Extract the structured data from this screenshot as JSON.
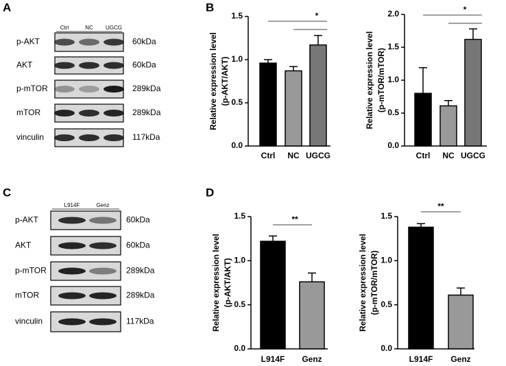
{
  "panel_labels": [
    "A",
    "B",
    "C",
    "D"
  ],
  "blot_a": {
    "lanes": [
      "Ctrl",
      "NC",
      "UGCG"
    ],
    "proteins": [
      "p-AKT",
      "AKT",
      "p-mTOR",
      "mTOR",
      "vinculin"
    ],
    "sizes": [
      "60kDa",
      "60kDa",
      "289kDa",
      "289kDa",
      "117kDa"
    ]
  },
  "blot_c": {
    "lanes": [
      "L914F",
      "Genz"
    ],
    "proteins": [
      "p-AKT",
      "AKT",
      "p-mTOR",
      "mTOR",
      "vinculin"
    ],
    "sizes": [
      "60kDa",
      "60kDa",
      "289kDa",
      "289kDa",
      "117kDa"
    ]
  },
  "chart_data": [
    {
      "type": "bar",
      "y_label": [
        "Relative expression level",
        "(p-AKT/AKT)"
      ],
      "categories": [
        "Ctrl",
        "NC",
        "UGCG"
      ],
      "values": [
        0.96,
        0.87,
        1.17
      ],
      "errors": [
        0.04,
        0.05,
        0.11
      ],
      "colors": [
        "#000000",
        "#999999",
        "#777777"
      ],
      "ylim": [
        0,
        1.5
      ],
      "yticks": [
        {
          "value": 0,
          "label": "0.0"
        },
        0.5,
        {
          "value": 1,
          "label": "1.0"
        },
        1.5
      ],
      "significance": {
        "label": "*",
        "pairs": [
          [
            "Ctrl",
            "UGCG"
          ],
          [
            "NC",
            "UGCG"
          ]
        ]
      }
    },
    {
      "type": "bar",
      "y_label": [
        "Relative expression level",
        "(p-mTOR/mTOR)"
      ],
      "categories": [
        "Ctrl",
        "NC",
        "UGCG"
      ],
      "values": [
        0.8,
        0.61,
        1.62
      ],
      "errors": [
        0.39,
        0.08,
        0.16
      ],
      "colors": [
        "#000000",
        "#999999",
        "#777777"
      ],
      "ylim": [
        0,
        2
      ],
      "yticks": [
        {
          "value": 0,
          "label": "0.0"
        },
        0.5,
        {
          "value": 1,
          "label": "1.0"
        },
        1.5,
        {
          "value": 2,
          "label": "2.0"
        }
      ],
      "significance": {
        "label": "*",
        "pairs": [
          [
            "Ctrl",
            "UGCG"
          ],
          [
            "NC",
            "UGCG"
          ]
        ]
      }
    },
    {
      "type": "bar",
      "y_label": [
        "Relative expression level",
        "(p-AKT/AKT)"
      ],
      "categories": [
        "L914F",
        "Genz"
      ],
      "values": [
        1.22,
        0.76
      ],
      "errors": [
        0.06,
        0.1
      ],
      "colors": [
        "#000000",
        "#999999"
      ],
      "ylim": [
        0,
        1.5
      ],
      "yticks": [
        {
          "value": 0,
          "label": "0.0"
        },
        0.5,
        {
          "value": 1,
          "label": "1.0"
        },
        1.5
      ],
      "significance": {
        "label": "**",
        "pairs": [
          [
            "L914F",
            "Genz"
          ]
        ]
      }
    },
    {
      "type": "bar",
      "y_label": [
        "Relative expression level",
        "(p-mTOR/mTOR)"
      ],
      "categories": [
        "L914F",
        "Genz"
      ],
      "values": [
        1.38,
        0.61
      ],
      "errors": [
        0.04,
        0.08
      ],
      "colors": [
        "#000000",
        "#999999"
      ],
      "ylim": [
        0,
        1.5
      ],
      "yticks": [
        {
          "value": 0,
          "label": "0.0"
        },
        0.5,
        {
          "value": 1,
          "label": "1.0"
        },
        1.5
      ],
      "significance": {
        "label": "**",
        "pairs": [
          [
            "L914F",
            "Genz"
          ]
        ]
      }
    }
  ]
}
